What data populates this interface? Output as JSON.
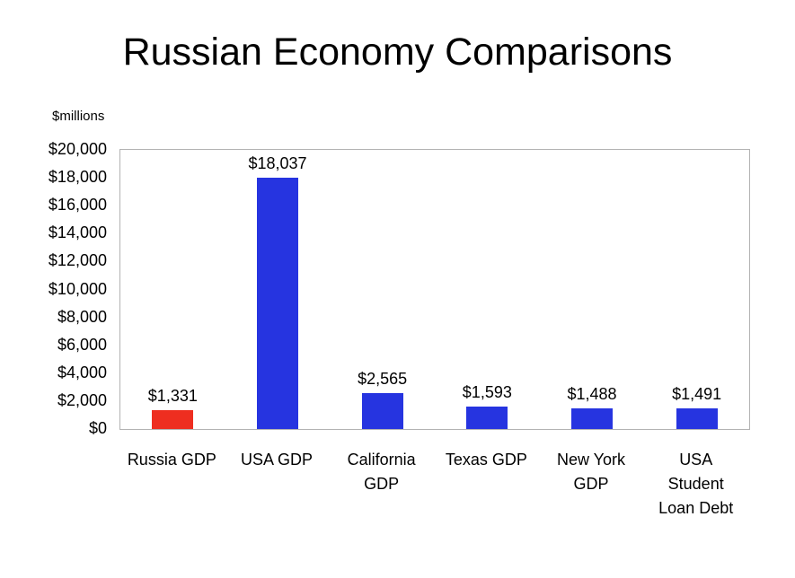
{
  "title": "Russian Economy Comparisons",
  "chart_data": {
    "type": "bar",
    "title": "Russian Economy Comparisons",
    "unit_label": "$millions",
    "categories": [
      "Russia GDP",
      "USA GDP",
      "California GDP",
      "Texas GDP",
      "New York GDP",
      "USA Student Loan Debt"
    ],
    "category_lines": [
      [
        "Russia GDP"
      ],
      [
        "USA GDP"
      ],
      [
        "California",
        "GDP"
      ],
      [
        "Texas GDP"
      ],
      [
        "New York",
        "GDP"
      ],
      [
        "USA",
        "Student",
        "Loan Debt"
      ]
    ],
    "values": [
      1331,
      18037,
      2565,
      1593,
      1488,
      1491
    ],
    "value_labels": [
      "$1,331",
      "$18,037",
      "$2,565",
      "$1,593",
      "$1,488",
      "$1,491"
    ],
    "bar_colors": [
      "#ee2e20",
      "#2634e0",
      "#2634e0",
      "#2634e0",
      "#2634e0",
      "#2634e0"
    ],
    "xlabel": "",
    "ylabel": "$millions",
    "ylim": [
      0,
      20000
    ],
    "ytick_step": 2000,
    "ytick_labels": [
      "$0",
      "$2,000",
      "$4,000",
      "$6,000",
      "$8,000",
      "$10,000",
      "$12,000",
      "$14,000",
      "$16,000",
      "$18,000",
      "$20,000"
    ],
    "grid": false,
    "legend": false,
    "accent_red": "#ee2e20",
    "accent_blue": "#2634e0"
  }
}
